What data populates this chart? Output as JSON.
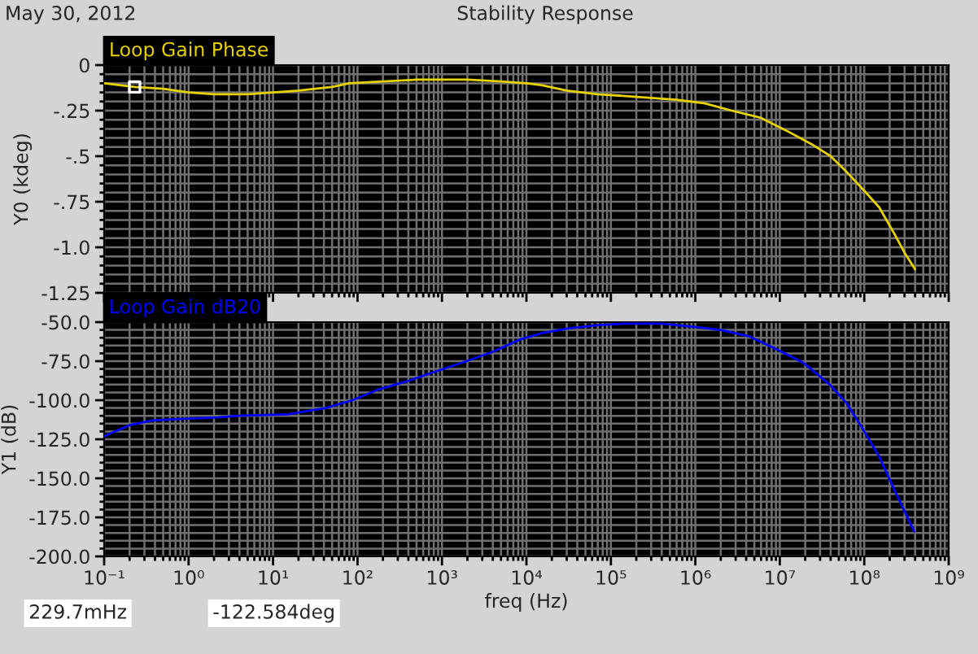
{
  "chart_data": [
    {
      "type": "line",
      "title": "Stability Response",
      "ylabel": "Y0 (kdeg)",
      "annotations": [
        "May 30, 2012",
        "229.7mHz",
        "-122.584deg"
      ],
      "log": "x",
      "xlim": [
        0.1,
        1000000000
      ],
      "xticks": [
        {
          "value": 0.1,
          "label": null
        },
        {
          "value": 1,
          "label": null
        },
        {
          "value": 10,
          "label": null
        },
        {
          "value": 100,
          "label": null
        },
        {
          "value": 1000,
          "label": null
        },
        {
          "value": 10000,
          "label": null
        },
        {
          "value": 100000,
          "label": null
        },
        {
          "value": 1000000,
          "label": null
        },
        {
          "value": 10000000,
          "label": null
        },
        {
          "value": 100000000,
          "label": null
        },
        {
          "value": 1000000000,
          "label": null
        }
      ],
      "ylim": [
        -1.25,
        0
      ],
      "yticks": [
        0,
        {
          "value": -0.25,
          "label": "-.25"
        },
        {
          "value": -0.5,
          "label": "-.5"
        },
        {
          "value": -0.75,
          "label": "-.75"
        },
        {
          "value": -1.0,
          "label": "-1.0"
        },
        {
          "value": -1.25,
          "label": "-1.25"
        }
      ],
      "tick_labels": "y",
      "grid": true,
      "legend": "top left",
      "series": [
        {
          "name": "Loop Gain Phase",
          "color": "#e6d200",
          "x": [
            0.1,
            0.2297,
            0.5,
            1,
            2,
            5,
            10,
            20,
            50,
            80,
            200,
            500,
            2000,
            5000,
            10000,
            15000,
            30000,
            70000,
            150000,
            300000,
            600000,
            1300000,
            2700000,
            6000000,
            12000000,
            25000000,
            40000000,
            60000000,
            100000000,
            150000000,
            230000000,
            300000000,
            400000000
          ],
          "values": [
            -0.1,
            -0.12,
            -0.13,
            -0.15,
            -0.16,
            -0.16,
            -0.15,
            -0.14,
            -0.12,
            -0.1,
            -0.09,
            -0.08,
            -0.08,
            -0.09,
            -0.1,
            -0.11,
            -0.14,
            -0.16,
            -0.17,
            -0.18,
            -0.19,
            -0.21,
            -0.25,
            -0.29,
            -0.36,
            -0.44,
            -0.5,
            -0.58,
            -0.69,
            -0.78,
            -0.93,
            -1.03,
            -1.12
          ]
        },
        {
          "type": "scatter",
          "marker": "square",
          "color": "#ffffff",
          "x": [
            0.2297
          ],
          "values": [
            -0.12
          ]
        }
      ]
    },
    {
      "type": "line",
      "xlabel": "freq (Hz)",
      "ylabel": "Y1 (dB)",
      "log": "x",
      "xlim": [
        0.1,
        1000000000
      ],
      "xticks": [
        {
          "value": 0.1,
          "label": "10⁻¹"
        },
        {
          "value": 1,
          "label": "10⁰"
        },
        {
          "value": 10,
          "label": "10¹"
        },
        {
          "value": 100,
          "label": "10²"
        },
        {
          "value": 1000,
          "label": "10³"
        },
        {
          "value": 10000,
          "label": "10⁴"
        },
        {
          "value": 100000,
          "label": "10⁵"
        },
        {
          "value": 1000000,
          "label": "10⁶"
        },
        {
          "value": 10000000,
          "label": "10⁷"
        },
        {
          "value": 100000000,
          "label": "10⁸"
        },
        {
          "value": 1000000000,
          "label": "10⁹"
        }
      ],
      "ylim": [
        -200,
        -50
      ],
      "yticks": [
        {
          "value": -50,
          "label": "-50.0"
        },
        {
          "value": -75,
          "label": "-75.0"
        },
        {
          "value": -100,
          "label": "-100.0"
        },
        {
          "value": -125,
          "label": "-125.0"
        },
        {
          "value": -150,
          "label": "-150.0"
        },
        {
          "value": -175,
          "label": "-175.0"
        },
        {
          "value": -200,
          "label": "-200.0"
        }
      ],
      "grid": true,
      "legend": "top left",
      "series": [
        {
          "name": "Loop Gain dB20",
          "color": "#0000ff",
          "x": [
            0.1,
            0.2,
            0.37,
            0.77,
            2.2,
            3.9,
            15,
            42,
            87,
            180,
            380,
            800,
            1950,
            4000,
            8500,
            15500,
            32000,
            68000,
            140000,
            400000,
            980000,
            2000000,
            4300000,
            8900000,
            19000000,
            39000000,
            62000000,
            95000000,
            150000000,
            230000000,
            390000000
          ],
          "values": [
            -123,
            -116,
            -113,
            -112,
            -111,
            -110,
            -109,
            -105,
            -100,
            -93,
            -88,
            -82,
            -75,
            -69,
            -61,
            -57,
            -54,
            -52,
            -51,
            -51,
            -53,
            -55,
            -59,
            -67,
            -76,
            -90,
            -102,
            -118,
            -136,
            -158,
            -184
          ]
        }
      ]
    }
  ]
}
